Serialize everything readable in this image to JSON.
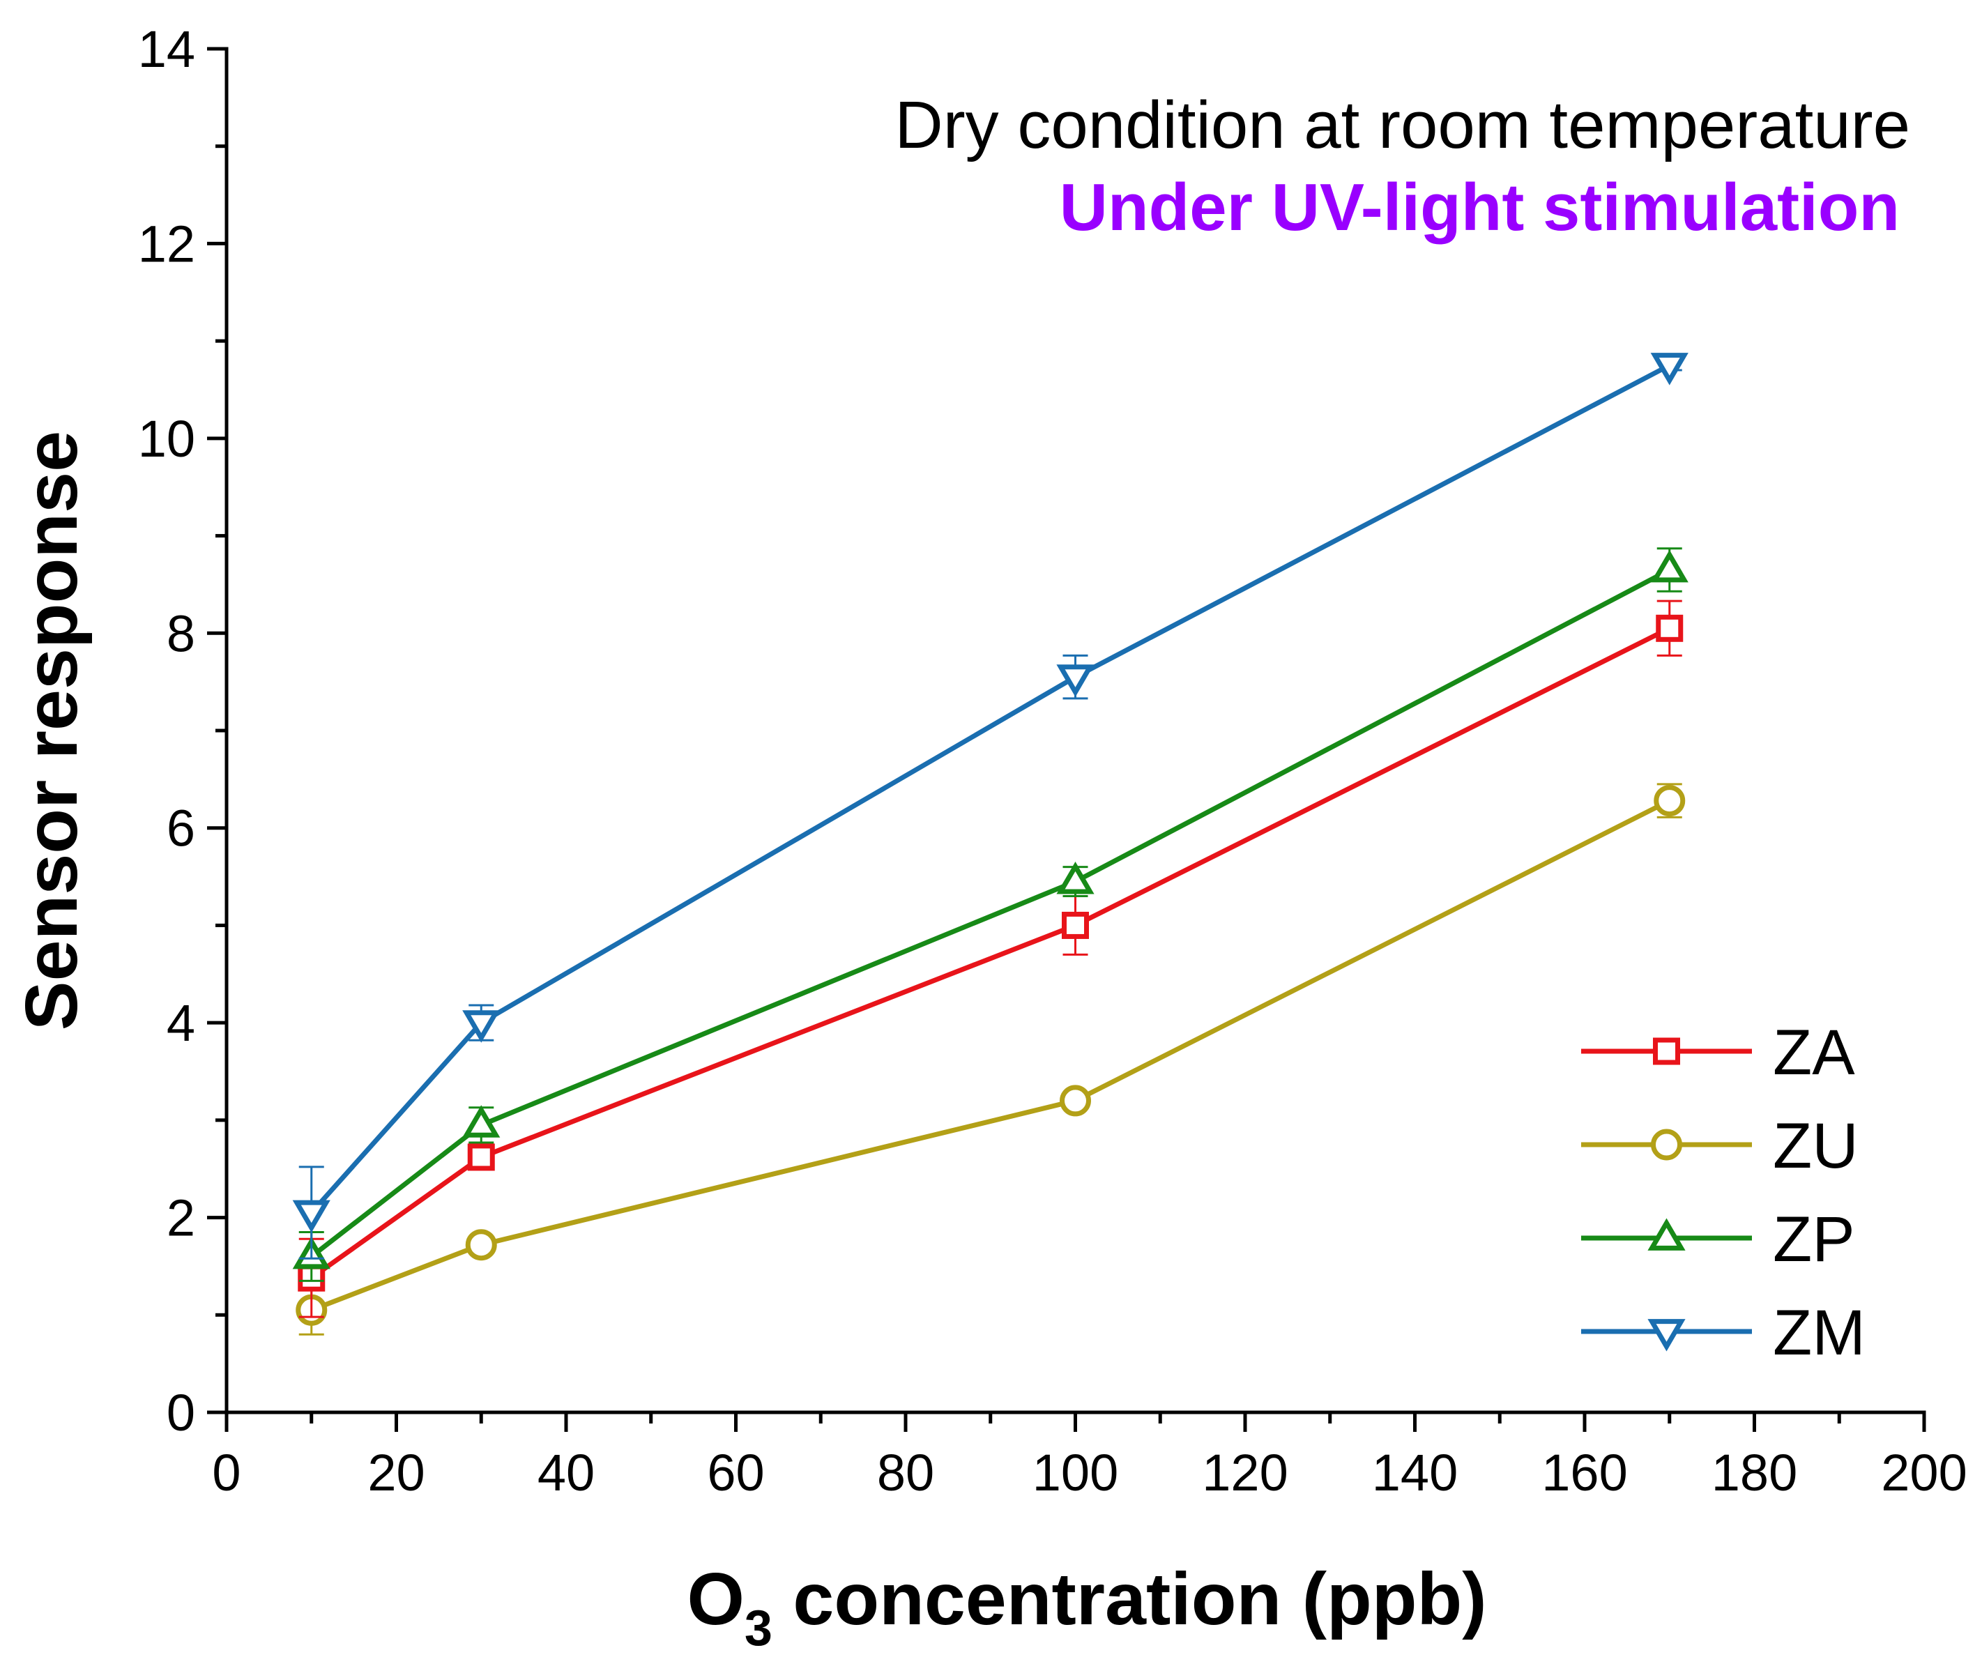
{
  "chart_data": {
    "type": "line",
    "title": "",
    "xlabel": {
      "main": "O",
      "subscript": "3",
      "rest": " concentration (ppb)"
    },
    "ylabel": "Sensor response",
    "xlim": [
      0,
      200
    ],
    "ylim": [
      0,
      14
    ],
    "x_major_ticks": [
      0,
      20,
      40,
      60,
      80,
      100,
      120,
      140,
      160,
      180,
      200
    ],
    "x_tick_labels": [
      "0",
      "20",
      "40",
      "60",
      "80",
      "100",
      "120",
      "140",
      "160",
      "180",
      "200"
    ],
    "y_major_ticks": [
      0,
      2,
      4,
      6,
      8,
      10,
      12,
      14
    ],
    "y_tick_labels": [
      "0",
      "2",
      "4",
      "6",
      "8",
      "10",
      "12",
      "14"
    ],
    "grid": false,
    "legend_position": "bottom-right",
    "annotations": [
      {
        "text": "Dry condition at room temperature",
        "color": "#000000",
        "weight": "normal"
      },
      {
        "text": "Under UV-light stimulation",
        "color": "#9900ff",
        "weight": "bold"
      }
    ],
    "x": [
      10,
      30,
      100,
      170
    ],
    "series": [
      {
        "name": "ZA",
        "color": "#e8141a",
        "marker": "square",
        "values": [
          1.38,
          2.62,
          5.0,
          8.05
        ],
        "errors": [
          0.4,
          0.1,
          0.3,
          0.28
        ]
      },
      {
        "name": "ZU",
        "color": "#b3a017",
        "marker": "circle",
        "values": [
          1.05,
          1.72,
          3.2,
          6.28
        ],
        "errors": [
          0.25,
          0.05,
          0.07,
          0.17
        ]
      },
      {
        "name": "ZP",
        "color": "#178a17",
        "marker": "triangle-up",
        "values": [
          1.6,
          2.95,
          5.45,
          8.65
        ],
        "errors": [
          0.25,
          0.18,
          0.15,
          0.22
        ]
      },
      {
        "name": "ZM",
        "color": "#1a6eb0",
        "marker": "triangle-down",
        "values": [
          2.05,
          4.0,
          7.55,
          10.75
        ],
        "errors": [
          0.47,
          0.18,
          0.22,
          0.05
        ]
      }
    ]
  }
}
